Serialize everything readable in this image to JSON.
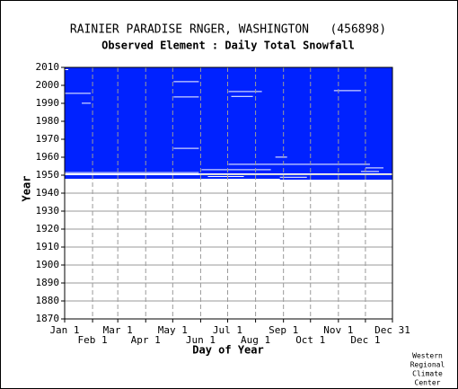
{
  "chart_data": {
    "type": "coverage",
    "title": "RAINIER PARADISE RNGER, WASHINGTON   (456898)",
    "subtitle": "Observed Element : Daily Total Snowfall",
    "x_label": "Day of Year",
    "y_label": "Year",
    "credit": [
      "Western",
      "Regional",
      "Climate",
      "Center"
    ],
    "xlim": [
      1,
      365
    ],
    "ylim": [
      1870,
      2010
    ],
    "xticks": [
      {
        "value": 1,
        "label": "Jan 1"
      },
      {
        "value": 32,
        "label": "Feb 1"
      },
      {
        "value": 60,
        "label": "Mar 1"
      },
      {
        "value": 91,
        "label": "Apr 1"
      },
      {
        "value": 121,
        "label": "May 1"
      },
      {
        "value": 152,
        "label": "Jun 1"
      },
      {
        "value": 182,
        "label": "Jul 1"
      },
      {
        "value": 213,
        "label": "Aug 1"
      },
      {
        "value": 244,
        "label": "Sep 1"
      },
      {
        "value": 274,
        "label": "Oct 1"
      },
      {
        "value": 305,
        "label": "Nov 1"
      },
      {
        "value": 335,
        "label": "Dec 1"
      },
      {
        "value": 365,
        "label": "Dec 31"
      }
    ],
    "yticks": [
      1870,
      1880,
      1890,
      1900,
      1910,
      1920,
      1930,
      1940,
      1950,
      1960,
      1970,
      1980,
      1990,
      2000,
      2010
    ],
    "grid": true,
    "observed_color": "#0022ff",
    "missing_color": "#ffffff",
    "observed": [
      {
        "days": [
          1,
          365
        ],
        "years": [
          1951,
          2010
        ]
      },
      {
        "days": [
          1,
          365
        ],
        "years": [
          1948,
          1950
        ]
      },
      {
        "days": [
          240,
          365
        ],
        "years": [
          1947.5,
          1948
        ]
      }
    ],
    "missing": [
      {
        "days": [
          1,
          30
        ],
        "years": [
          1995.3,
          1995.8
        ]
      },
      {
        "days": [
          122,
          150
        ],
        "years": [
          1993.3,
          1993.8
        ]
      },
      {
        "days": [
          122,
          150
        ],
        "years": [
          1964.7,
          1965.2
        ]
      },
      {
        "days": [
          183,
          220
        ],
        "years": [
          1996.3,
          1996.8
        ]
      },
      {
        "days": [
          186,
          210
        ],
        "years": [
          1993.6,
          1994.1
        ]
      },
      {
        "days": [
          183,
          340
        ],
        "years": [
          1955.8,
          1956.3
        ]
      },
      {
        "days": [
          235,
          248
        ],
        "years": [
          1959.8,
          1960.3
        ]
      },
      {
        "days": [
          335,
          355
        ],
        "years": [
          1953.8,
          1954.3
        ]
      },
      {
        "days": [
          153,
          230
        ],
        "years": [
          1952.8,
          1953.3
        ]
      },
      {
        "days": [
          1,
          150
        ],
        "years": [
          1950,
          1950.6
        ]
      },
      {
        "days": [
          1,
          150
        ],
        "years": [
          1951.3,
          1951.7
        ]
      },
      {
        "days": [
          122,
          150
        ],
        "years": [
          2001.8,
          2002.3
        ]
      },
      {
        "days": [
          20,
          30
        ],
        "years": [
          1989.8,
          1990.3
        ]
      },
      {
        "days": [
          300,
          330
        ],
        "years": [
          1996.8,
          1997.3
        ]
      },
      {
        "days": [
          330,
          350
        ],
        "years": [
          1951.8,
          1952.3
        ]
      },
      {
        "days": [
          1,
          5
        ],
        "years": [
          2008.5,
          2009
        ]
      },
      {
        "days": [
          160,
          200
        ],
        "years": [
          1949,
          1949.5
        ]
      },
      {
        "days": [
          240,
          270
        ],
        "years": [
          1948.6,
          1949.1
        ]
      }
    ]
  }
}
